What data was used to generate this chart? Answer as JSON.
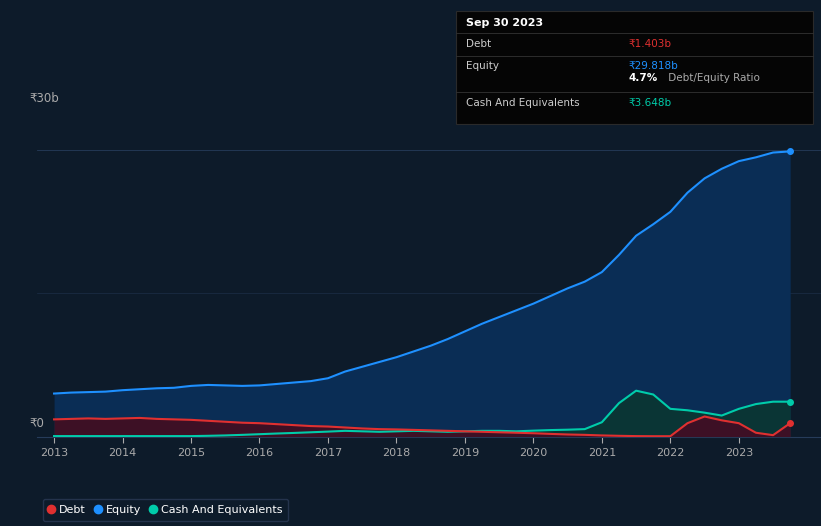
{
  "bg_color": "#0d1b2a",
  "plot_bg_color": "#0d1b2a",
  "grid_color": "#263c5a",
  "ylabel_text": "₹30b",
  "y0_text": "₹0",
  "equity_color": "#1e90ff",
  "equity_fill": "#0a2d55",
  "debt_color": "#e03030",
  "debt_fill": "#3d1025",
  "cash_color": "#00ccaa",
  "cash_fill": "#0a3535",
  "title_text": "Sep 30 2023",
  "tooltip_bg": "#050505",
  "tooltip_border": "#2a2a2a",
  "years": [
    2013.0,
    2013.25,
    2013.5,
    2013.75,
    2014.0,
    2014.25,
    2014.5,
    2014.75,
    2015.0,
    2015.25,
    2015.5,
    2015.75,
    2016.0,
    2016.25,
    2016.5,
    2016.75,
    2017.0,
    2017.25,
    2017.5,
    2017.75,
    2018.0,
    2018.25,
    2018.5,
    2018.75,
    2019.0,
    2019.25,
    2019.5,
    2019.75,
    2020.0,
    2020.25,
    2020.5,
    2020.75,
    2021.0,
    2021.25,
    2021.5,
    2021.75,
    2022.0,
    2022.25,
    2022.5,
    2022.75,
    2023.0,
    2023.25,
    2023.5,
    2023.75
  ],
  "equity": [
    4.5,
    4.6,
    4.65,
    4.7,
    4.85,
    4.95,
    5.05,
    5.1,
    5.3,
    5.4,
    5.35,
    5.3,
    5.35,
    5.5,
    5.65,
    5.8,
    6.1,
    6.8,
    7.3,
    7.8,
    8.3,
    8.9,
    9.5,
    10.2,
    11.0,
    11.8,
    12.5,
    13.2,
    13.9,
    14.7,
    15.5,
    16.2,
    17.2,
    19.0,
    21.0,
    22.2,
    23.5,
    25.5,
    27.0,
    28.0,
    28.8,
    29.2,
    29.7,
    29.818
  ],
  "debt": [
    1.8,
    1.85,
    1.9,
    1.85,
    1.9,
    1.95,
    1.85,
    1.8,
    1.75,
    1.65,
    1.55,
    1.45,
    1.4,
    1.3,
    1.2,
    1.1,
    1.05,
    0.95,
    0.85,
    0.78,
    0.75,
    0.7,
    0.65,
    0.6,
    0.55,
    0.5,
    0.45,
    0.4,
    0.35,
    0.28,
    0.22,
    0.18,
    0.12,
    0.08,
    0.05,
    0.04,
    0.04,
    1.4,
    2.1,
    1.7,
    1.4,
    0.4,
    0.15,
    1.403
  ],
  "cash": [
    0.05,
    0.05,
    0.05,
    0.05,
    0.05,
    0.05,
    0.05,
    0.05,
    0.05,
    0.08,
    0.12,
    0.18,
    0.25,
    0.32,
    0.38,
    0.45,
    0.52,
    0.6,
    0.55,
    0.5,
    0.55,
    0.6,
    0.55,
    0.5,
    0.55,
    0.6,
    0.6,
    0.55,
    0.62,
    0.68,
    0.72,
    0.78,
    1.5,
    3.5,
    4.8,
    4.4,
    2.9,
    2.75,
    2.5,
    2.2,
    2.9,
    3.4,
    3.648,
    3.648
  ],
  "xtick_years": [
    2013,
    2014,
    2015,
    2016,
    2017,
    2018,
    2019,
    2020,
    2021,
    2022,
    2023
  ],
  "ylim": [
    0,
    33
  ],
  "xlim": [
    2012.75,
    2024.2
  ],
  "tooltip": {
    "title": "Sep 30 2023",
    "debt_label": "Debt",
    "debt_value": "₹1.403b",
    "equity_label": "Equity",
    "equity_value": "₹29.818b",
    "ratio_bold": "4.7%",
    "ratio_text": " Debt/Equity Ratio",
    "cash_label": "Cash And Equivalents",
    "cash_value": "₹3.648b"
  },
  "legend": [
    {
      "label": "Debt",
      "color": "#e03030"
    },
    {
      "label": "Equity",
      "color": "#1e90ff"
    },
    {
      "label": "Cash And Equivalents",
      "color": "#00ccaa"
    }
  ]
}
